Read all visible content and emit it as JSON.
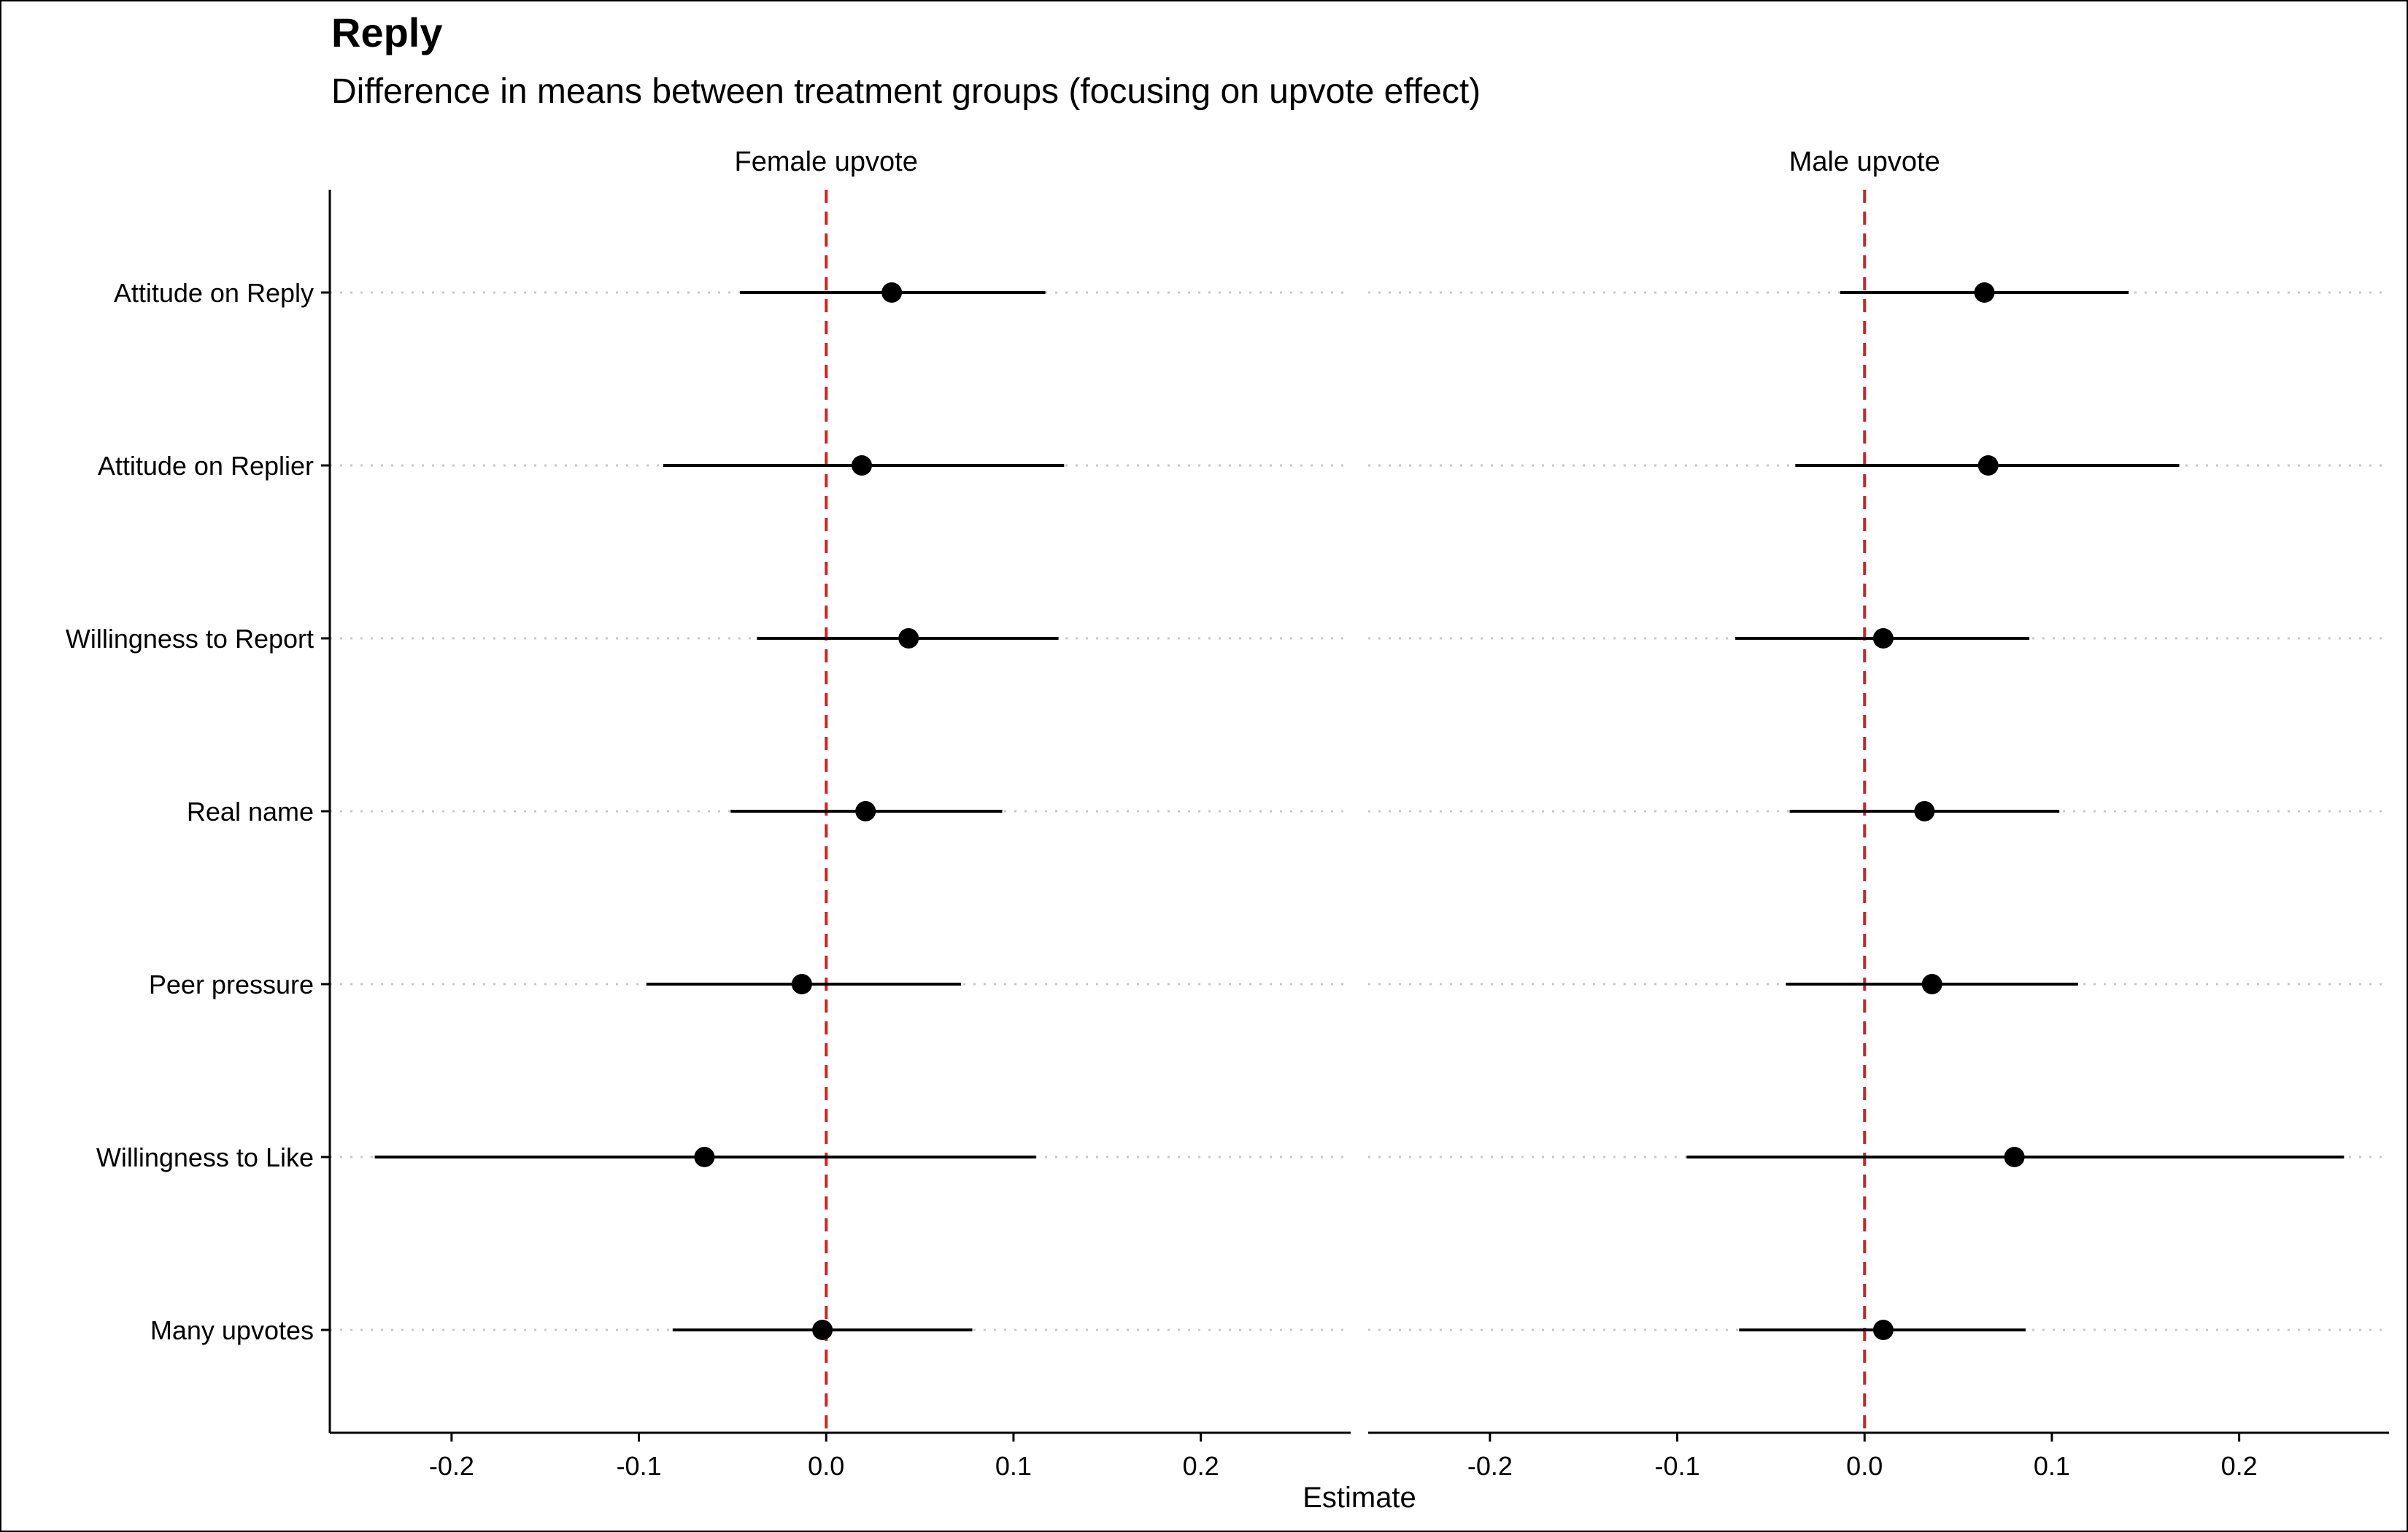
{
  "chart_data": {
    "type": "scatter",
    "subtype": "coefficient-plot",
    "title": "Reply",
    "subtitle": "Difference in means between treatment groups (focusing on upvote effect)",
    "xlabel": "Estimate",
    "ylabel": "",
    "xlim": [
      -0.265,
      0.28
    ],
    "xticks": [
      -0.2,
      -0.1,
      0.0,
      0.1,
      0.2
    ],
    "xtick_labels": [
      "-0.2",
      "-0.1",
      "0.0",
      "0.1",
      "0.2"
    ],
    "reference_line": 0,
    "reference_color": "#e41a1c",
    "grid": "dotted horizontal",
    "categories": [
      "Attitude on Reply",
      "Attitude on Replier",
      "Willingness to Report",
      "Real name",
      "Peer pressure",
      "Willingness to Like",
      "Many upvotes"
    ],
    "panels": [
      {
        "label": "Female upvote",
        "estimate": [
          0.035,
          0.019,
          0.044,
          0.021,
          -0.013,
          -0.065,
          -0.002
        ],
        "lower": [
          -0.046,
          -0.087,
          -0.037,
          -0.051,
          -0.096,
          -0.241,
          -0.082
        ],
        "upper": [
          0.117,
          0.127,
          0.124,
          0.094,
          0.072,
          0.112,
          0.078
        ]
      },
      {
        "label": "Male upvote",
        "estimate": [
          0.064,
          0.066,
          0.01,
          0.032,
          0.036,
          0.08,
          0.01
        ],
        "lower": [
          -0.013,
          -0.037,
          -0.069,
          -0.04,
          -0.042,
          -0.095,
          -0.067
        ],
        "upper": [
          0.141,
          0.168,
          0.088,
          0.104,
          0.114,
          0.256,
          0.086
        ]
      }
    ]
  }
}
